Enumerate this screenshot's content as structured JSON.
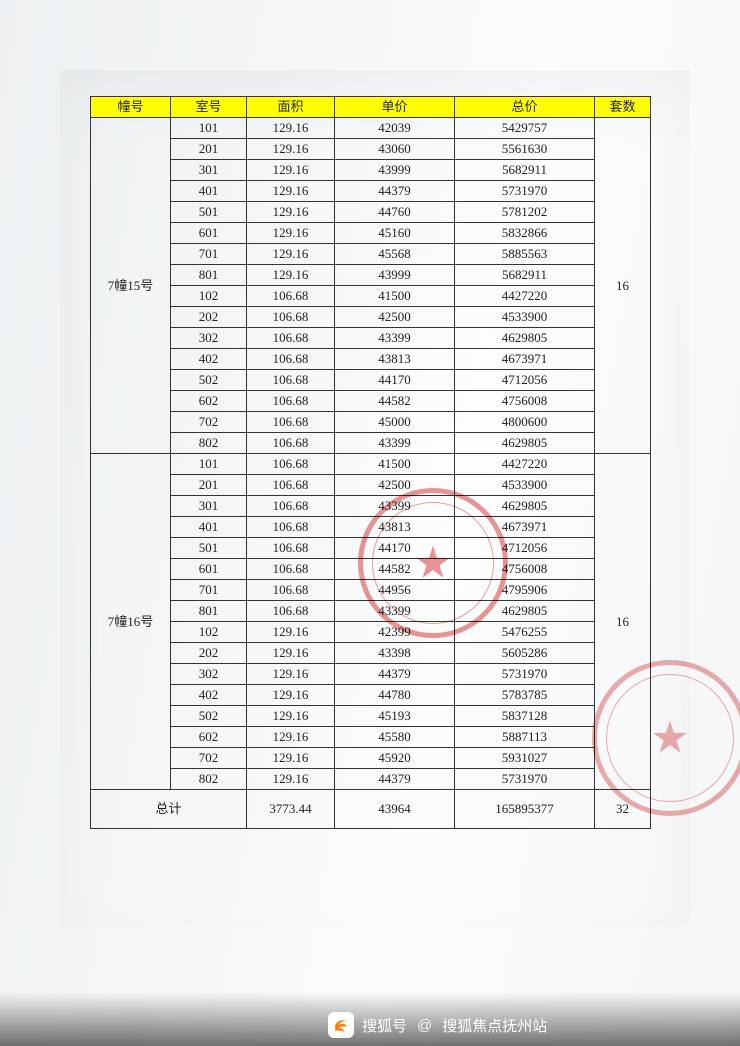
{
  "columns": [
    "幢号",
    "室号",
    "面积",
    "单价",
    "总价",
    "套数"
  ],
  "groups": [
    {
      "building": "7幢15号",
      "count": 16,
      "rows": [
        {
          "room": "101",
          "area": "129.16",
          "unit": "42039",
          "total": "5429757"
        },
        {
          "room": "201",
          "area": "129.16",
          "unit": "43060",
          "total": "5561630"
        },
        {
          "room": "301",
          "area": "129.16",
          "unit": "43999",
          "total": "5682911"
        },
        {
          "room": "401",
          "area": "129.16",
          "unit": "44379",
          "total": "5731970"
        },
        {
          "room": "501",
          "area": "129.16",
          "unit": "44760",
          "total": "5781202"
        },
        {
          "room": "601",
          "area": "129.16",
          "unit": "45160",
          "total": "5832866"
        },
        {
          "room": "701",
          "area": "129.16",
          "unit": "45568",
          "total": "5885563"
        },
        {
          "room": "801",
          "area": "129.16",
          "unit": "43999",
          "total": "5682911"
        },
        {
          "room": "102",
          "area": "106.68",
          "unit": "41500",
          "total": "4427220"
        },
        {
          "room": "202",
          "area": "106.68",
          "unit": "42500",
          "total": "4533900"
        },
        {
          "room": "302",
          "area": "106.68",
          "unit": "43399",
          "total": "4629805"
        },
        {
          "room": "402",
          "area": "106.68",
          "unit": "43813",
          "total": "4673971"
        },
        {
          "room": "502",
          "area": "106.68",
          "unit": "44170",
          "total": "4712056"
        },
        {
          "room": "602",
          "area": "106.68",
          "unit": "44582",
          "total": "4756008"
        },
        {
          "room": "702",
          "area": "106.68",
          "unit": "45000",
          "total": "4800600"
        },
        {
          "room": "802",
          "area": "106.68",
          "unit": "43399",
          "total": "4629805"
        }
      ]
    },
    {
      "building": "7幢16号",
      "count": 16,
      "rows": [
        {
          "room": "101",
          "area": "106.68",
          "unit": "41500",
          "total": "4427220"
        },
        {
          "room": "201",
          "area": "106.68",
          "unit": "42500",
          "total": "4533900"
        },
        {
          "room": "301",
          "area": "106.68",
          "unit": "43399",
          "total": "4629805"
        },
        {
          "room": "401",
          "area": "106.68",
          "unit": "43813",
          "total": "4673971"
        },
        {
          "room": "501",
          "area": "106.68",
          "unit": "44170",
          "total": "4712056"
        },
        {
          "room": "601",
          "area": "106.68",
          "unit": "44582",
          "total": "4756008"
        },
        {
          "room": "701",
          "area": "106.68",
          "unit": "44956",
          "total": "4795906"
        },
        {
          "room": "801",
          "area": "106.68",
          "unit": "43399",
          "total": "4629805"
        },
        {
          "room": "102",
          "area": "129.16",
          "unit": "42399",
          "total": "5476255"
        },
        {
          "room": "202",
          "area": "129.16",
          "unit": "43398",
          "total": "5605286"
        },
        {
          "room": "302",
          "area": "129.16",
          "unit": "44379",
          "total": "5731970"
        },
        {
          "room": "402",
          "area": "129.16",
          "unit": "44780",
          "total": "5783785"
        },
        {
          "room": "502",
          "area": "129.16",
          "unit": "45193",
          "total": "5837128"
        },
        {
          "room": "602",
          "area": "129.16",
          "unit": "45580",
          "total": "5887113"
        },
        {
          "room": "702",
          "area": "129.16",
          "unit": "45920",
          "total": "5931027"
        },
        {
          "room": "802",
          "area": "129.16",
          "unit": "44379",
          "total": "5731970"
        }
      ]
    }
  ],
  "total": {
    "label": "总计",
    "area": "3773.44",
    "unit": "43964",
    "total": "165895377",
    "count": "32"
  },
  "footer": {
    "brand": "搜狐号",
    "at": "@",
    "author": "搜狐焦点抚州站"
  },
  "style": {
    "header_bg": "#ffff00",
    "border_color": "#333333",
    "seal_color": "rgba(215,40,40,.55)"
  }
}
